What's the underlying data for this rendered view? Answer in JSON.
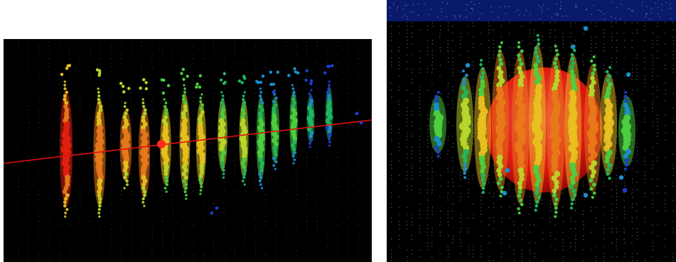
{
  "figure": {
    "panels": [
      {
        "id": "left",
        "description_type": "event-display-track",
        "colors": {
          "background": "#000000",
          "track_line": "#e01010",
          "vertex": "#ff2a1a",
          "dom_strings": "#6a6a6a"
        },
        "string_count": 14,
        "color_gradient": [
          "#e02010",
          "#e8781a",
          "#e8c020",
          "#b8d82a",
          "#4cd040",
          "#20b860",
          "#1a8fd0",
          "#1a3fd0"
        ]
      },
      {
        "id": "right",
        "description_type": "event-display-cascade",
        "colors": {
          "background": "#000000",
          "top_band": "#0a1a6a",
          "sphere": "#e81a12",
          "dom_strings": "#9a9a9a"
        },
        "string_count": 11,
        "color_gradient": [
          "#e02010",
          "#e8781a",
          "#e8c020",
          "#b8d82a",
          "#4cd040",
          "#20b860",
          "#1a8fd0",
          "#1a3fd0"
        ]
      }
    ]
  }
}
